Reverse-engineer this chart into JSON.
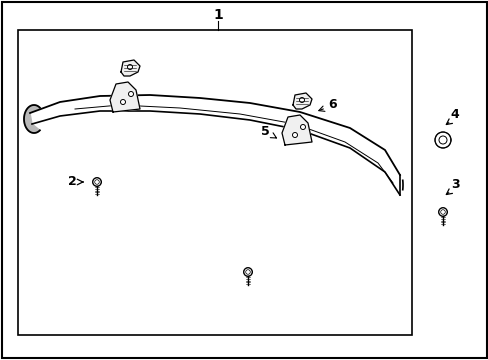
{
  "bg_color": "#ffffff",
  "border_color": "#000000",
  "text_color": "#000000",
  "label1": "1",
  "label2": "2",
  "label3": "3",
  "label4": "4",
  "label5": "5",
  "label6": "6",
  "figsize": [
    4.89,
    3.6
  ],
  "dpi": 100
}
